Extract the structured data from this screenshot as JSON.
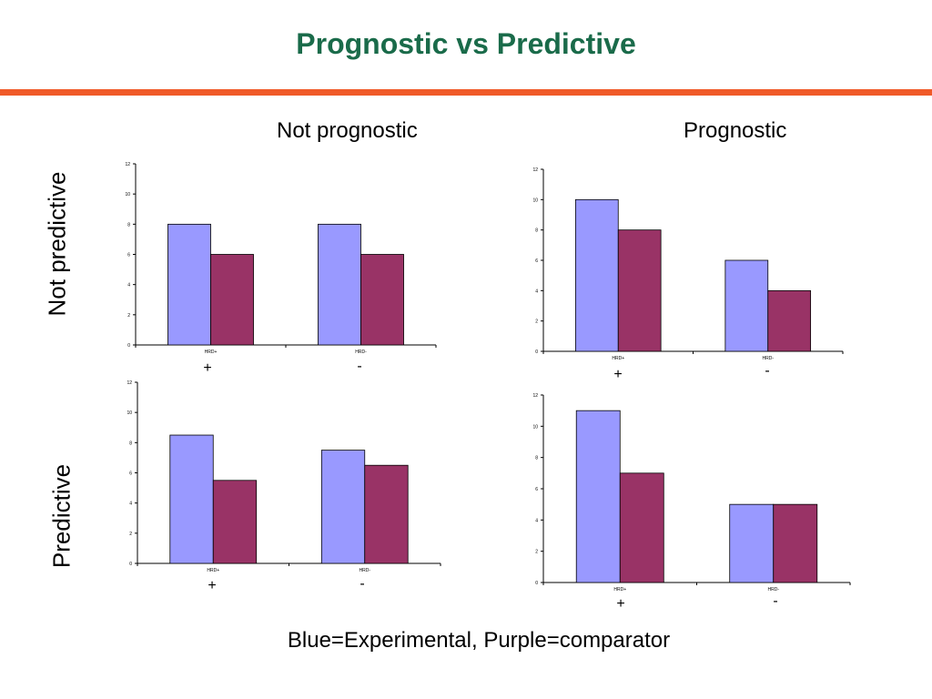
{
  "slide": {
    "title": "Prognostic vs Predictive",
    "column_headers": [
      "Not prognostic",
      "Prognostic"
    ],
    "row_headers": [
      "Not predictive",
      "Predictive"
    ],
    "caption": "Blue=Experimental, Purple=comparator",
    "signs": [
      "+",
      "-"
    ]
  },
  "colors": {
    "title": "#1a6b4a",
    "rule": "#f05a28",
    "experimental": "#9999ff",
    "comparator": "#993366"
  },
  "chart_data": [
    {
      "type": "bar",
      "categories": [
        "HRD+",
        "HRD-"
      ],
      "series": [
        {
          "values": [
            8,
            8
          ]
        },
        {
          "values": [
            6,
            6
          ]
        }
      ],
      "ylim": [
        0,
        12
      ],
      "yticks": [
        0,
        2,
        4,
        6,
        8,
        10,
        12
      ]
    },
    {
      "type": "bar",
      "categories": [
        "HRD+",
        "HRD-"
      ],
      "series": [
        {
          "values": [
            10,
            6
          ]
        },
        {
          "values": [
            8,
            4
          ]
        }
      ],
      "ylim": [
        0,
        12
      ],
      "yticks": [
        0,
        2,
        4,
        6,
        8,
        10,
        12
      ]
    },
    {
      "type": "bar",
      "categories": [
        "HRD+",
        "HRD-"
      ],
      "series": [
        {
          "values": [
            8.5,
            7.5
          ]
        },
        {
          "values": [
            5.5,
            6.5
          ]
        }
      ],
      "ylim": [
        0,
        12
      ],
      "yticks": [
        0,
        2,
        4,
        6,
        8,
        10,
        12
      ]
    },
    {
      "type": "bar",
      "categories": [
        "HRD+",
        "HRD-"
      ],
      "series": [
        {
          "values": [
            11,
            5
          ]
        },
        {
          "values": [
            7,
            5
          ]
        }
      ],
      "ylim": [
        0,
        12
      ],
      "yticks": [
        0,
        2,
        4,
        6,
        8,
        10,
        12
      ]
    }
  ]
}
